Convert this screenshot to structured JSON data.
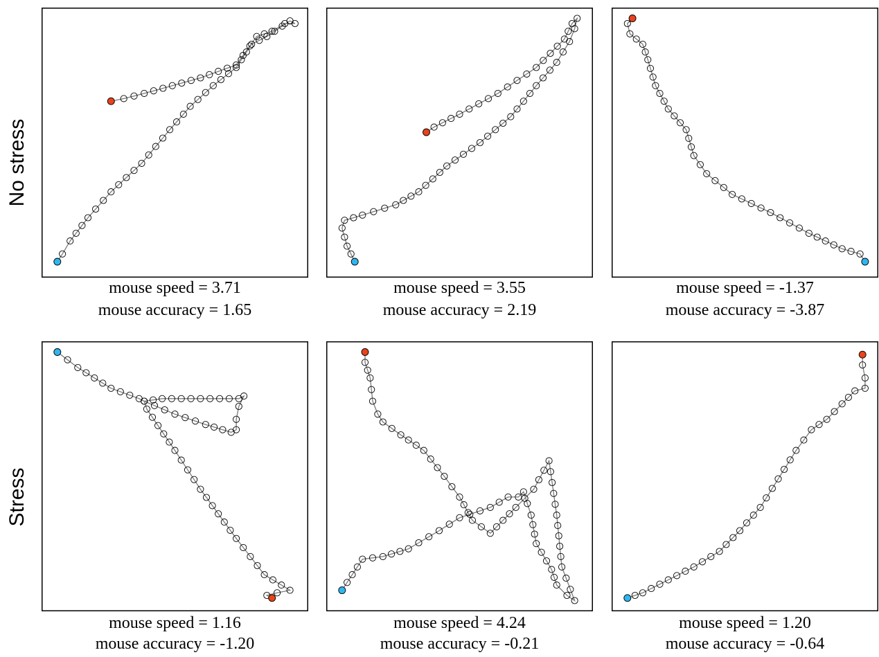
{
  "row_labels": [
    "No stress",
    "Stress"
  ],
  "legend_colors": {
    "start": "#2fb6f0",
    "end": "#e8431c"
  },
  "chart_data": [
    {
      "type": "line",
      "row": "No stress",
      "speed_label": "mouse speed = 3.71",
      "accuracy_label": "mouse accuracy = 1.65",
      "grid": false,
      "xlim": [
        0,
        1
      ],
      "ylim": [
        0,
        1
      ],
      "path": [
        [
          0.04,
          0.04
        ],
        [
          0.06,
          0.07
        ],
        [
          0.09,
          0.12
        ],
        [
          0.16,
          0.21
        ],
        [
          0.25,
          0.31
        ],
        [
          0.37,
          0.42
        ],
        [
          0.48,
          0.55
        ],
        [
          0.56,
          0.64
        ],
        [
          0.65,
          0.72
        ],
        [
          0.74,
          0.79
        ],
        [
          0.8,
          0.88
        ],
        [
          0.86,
          0.91
        ],
        [
          0.95,
          0.97
        ],
        [
          0.97,
          0.96
        ],
        [
          0.93,
          0.96
        ],
        [
          0.88,
          0.93
        ],
        [
          0.82,
          0.91
        ],
        [
          0.74,
          0.8
        ],
        [
          0.6,
          0.75
        ],
        [
          0.49,
          0.72
        ],
        [
          0.38,
          0.69
        ],
        [
          0.3,
          0.67
        ],
        [
          0.25,
          0.66
        ]
      ],
      "start": [
        0.04,
        0.04
      ],
      "end": [
        0.25,
        0.66
      ]
    },
    {
      "type": "line",
      "row": "No stress",
      "speed_label": "mouse speed = 3.55",
      "accuracy_label": "mouse accuracy = 2.19",
      "grid": false,
      "xlim": [
        0,
        1
      ],
      "ylim": [
        0,
        1
      ],
      "path": [
        [
          0.09,
          0.04
        ],
        [
          0.06,
          0.1
        ],
        [
          0.04,
          0.17
        ],
        [
          0.05,
          0.2
        ],
        [
          0.12,
          0.22
        ],
        [
          0.25,
          0.26
        ],
        [
          0.34,
          0.31
        ],
        [
          0.45,
          0.41
        ],
        [
          0.58,
          0.5
        ],
        [
          0.7,
          0.6
        ],
        [
          0.8,
          0.72
        ],
        [
          0.88,
          0.81
        ],
        [
          0.93,
          0.89
        ],
        [
          0.95,
          0.94
        ],
        [
          0.96,
          0.98
        ],
        [
          0.94,
          0.96
        ],
        [
          0.91,
          0.9
        ],
        [
          0.8,
          0.79
        ],
        [
          0.65,
          0.69
        ],
        [
          0.5,
          0.61
        ],
        [
          0.4,
          0.56
        ],
        [
          0.37,
          0.54
        ]
      ],
      "start": [
        0.09,
        0.04
      ],
      "end": [
        0.37,
        0.54
      ]
    },
    {
      "type": "line",
      "row": "No stress",
      "speed_label": "mouse speed = -1.37",
      "accuracy_label": "mouse accuracy = -3.87",
      "grid": false,
      "xlim": [
        0,
        1
      ],
      "ylim": [
        0,
        1
      ],
      "path": [
        [
          0.97,
          0.04
        ],
        [
          0.95,
          0.07
        ],
        [
          0.88,
          0.09
        ],
        [
          0.75,
          0.15
        ],
        [
          0.6,
          0.23
        ],
        [
          0.45,
          0.3
        ],
        [
          0.35,
          0.38
        ],
        [
          0.3,
          0.45
        ],
        [
          0.27,
          0.55
        ],
        [
          0.2,
          0.63
        ],
        [
          0.15,
          0.72
        ],
        [
          0.12,
          0.82
        ],
        [
          0.1,
          0.88
        ],
        [
          0.05,
          0.92
        ],
        [
          0.04,
          0.96
        ],
        [
          0.06,
          0.98
        ]
      ],
      "start": [
        0.97,
        0.04
      ],
      "end": [
        0.06,
        0.98
      ]
    },
    {
      "type": "line",
      "row": "Stress",
      "speed_label": "mouse speed = 1.16",
      "accuracy_label": "mouse accuracy = -1.20",
      "grid": false,
      "xlim": [
        0,
        1
      ],
      "ylim": [
        0,
        1
      ],
      "path": [
        [
          0.04,
          0.98
        ],
        [
          0.12,
          0.92
        ],
        [
          0.25,
          0.84
        ],
        [
          0.36,
          0.8
        ],
        [
          0.38,
          0.79
        ],
        [
          0.5,
          0.74
        ],
        [
          0.62,
          0.7
        ],
        [
          0.72,
          0.67
        ],
        [
          0.74,
          0.68
        ],
        [
          0.74,
          0.72
        ],
        [
          0.75,
          0.77
        ],
        [
          0.77,
          0.81
        ],
        [
          0.75,
          0.8
        ],
        [
          0.6,
          0.8
        ],
        [
          0.45,
          0.8
        ],
        [
          0.38,
          0.79
        ],
        [
          0.39,
          0.76
        ],
        [
          0.5,
          0.6
        ],
        [
          0.6,
          0.45
        ],
        [
          0.74,
          0.26
        ],
        [
          0.85,
          0.12
        ],
        [
          0.95,
          0.06
        ],
        [
          0.9,
          0.05
        ],
        [
          0.86,
          0.04
        ],
        [
          0.88,
          0.03
        ]
      ],
      "start": [
        0.04,
        0.98
      ],
      "end": [
        0.88,
        0.03
      ]
    },
    {
      "type": "line",
      "row": "Stress",
      "speed_label": "mouse speed = 4.24",
      "accuracy_label": "mouse accuracy = -0.21",
      "grid": false,
      "xlim": [
        0,
        1
      ],
      "ylim": [
        0,
        1
      ],
      "path": [
        [
          0.04,
          0.06
        ],
        [
          0.12,
          0.18
        ],
        [
          0.2,
          0.19
        ],
        [
          0.3,
          0.22
        ],
        [
          0.42,
          0.29
        ],
        [
          0.5,
          0.34
        ],
        [
          0.62,
          0.38
        ],
        [
          0.69,
          0.42
        ],
        [
          0.73,
          0.42
        ],
        [
          0.75,
          0.44
        ],
        [
          0.78,
          0.35
        ],
        [
          0.8,
          0.24
        ],
        [
          0.86,
          0.14
        ],
        [
          0.88,
          0.08
        ],
        [
          0.92,
          0.04
        ],
        [
          0.95,
          0.02
        ],
        [
          0.9,
          0.15
        ],
        [
          0.88,
          0.35
        ],
        [
          0.85,
          0.56
        ],
        [
          0.79,
          0.45
        ],
        [
          0.72,
          0.38
        ],
        [
          0.62,
          0.28
        ],
        [
          0.55,
          0.33
        ],
        [
          0.5,
          0.42
        ],
        [
          0.44,
          0.5
        ],
        [
          0.36,
          0.6
        ],
        [
          0.27,
          0.66
        ],
        [
          0.2,
          0.71
        ],
        [
          0.18,
          0.74
        ],
        [
          0.16,
          0.79
        ],
        [
          0.15,
          0.88
        ],
        [
          0.13,
          0.94
        ],
        [
          0.13,
          0.98
        ]
      ],
      "start": [
        0.04,
        0.06
      ],
      "end": [
        0.13,
        0.98
      ]
    },
    {
      "type": "line",
      "row": "Stress",
      "speed_label": "mouse speed = 1.20",
      "accuracy_label": "mouse accuracy = -0.64",
      "grid": false,
      "xlim": [
        0,
        1
      ],
      "ylim": [
        0,
        1
      ],
      "path": [
        [
          0.04,
          0.03
        ],
        [
          0.1,
          0.05
        ],
        [
          0.2,
          0.1
        ],
        [
          0.3,
          0.15
        ],
        [
          0.4,
          0.21
        ],
        [
          0.48,
          0.29
        ],
        [
          0.56,
          0.38
        ],
        [
          0.63,
          0.49
        ],
        [
          0.7,
          0.6
        ],
        [
          0.76,
          0.68
        ],
        [
          0.82,
          0.72
        ],
        [
          0.88,
          0.78
        ],
        [
          0.93,
          0.83
        ],
        [
          0.97,
          0.84
        ],
        [
          0.97,
          0.88
        ],
        [
          0.96,
          0.93
        ],
        [
          0.96,
          0.97
        ]
      ],
      "start": [
        0.04,
        0.03
      ],
      "end": [
        0.96,
        0.97
      ]
    }
  ]
}
